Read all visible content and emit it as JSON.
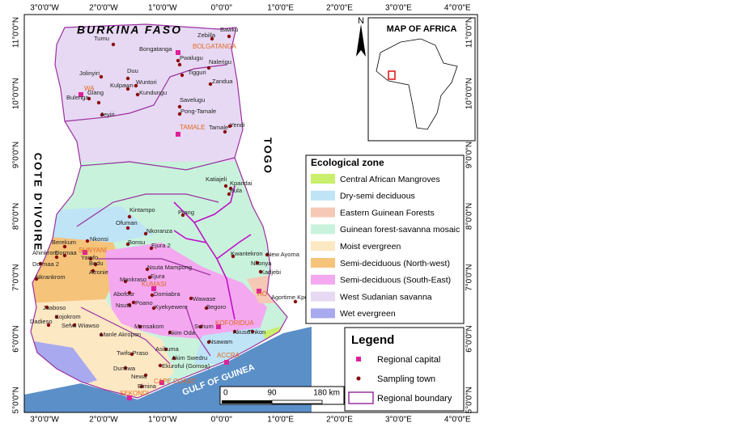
{
  "map": {
    "axes": {
      "top": [
        "3°0'0\"W",
        "2°0'0\"W",
        "1°0'0\"W",
        "0°0'0\"",
        "1°0'0\"E",
        "2°0'0\"E",
        "3°0'0\"E",
        "4°0'0\"E"
      ],
      "bottom": [
        "3°0'0\"W",
        "2°0'0\"W",
        "1°0'0\"W",
        "0°0'0\"",
        "1°0'0\"E",
        "2°0'0\"E",
        "3°0'0\"E",
        "4°0'0\"E"
      ],
      "left": [
        "11°0'0\"N",
        "10°0'0\"N",
        "9°0'0\"N",
        "8°0'0\"N",
        "7°0'0\"N",
        "6°0'0\"N",
        "5°0'0\"N"
      ],
      "right": [
        "11°0'0\"N",
        "10°0'0\"N",
        "9°0'0\"N",
        "8°0'0\"N",
        "7°0'0\"N",
        "6°0'0\"N",
        "5°0'0\"N"
      ]
    },
    "countries": {
      "north": "BURKINA FASO",
      "west": "COTE D'IVOIRE",
      "east": "TOGO",
      "sea": "GULF OF GUINEA"
    },
    "inset": {
      "title": "MAP OF AFRICA",
      "north": "N"
    },
    "scale": [
      "0",
      "90",
      "180 km"
    ],
    "ecological_zone": {
      "title": "Ecological zone",
      "items": [
        {
          "label": "Central African Mangroves",
          "color": "#c9ef6c"
        },
        {
          "label": "Dry-semi deciduous",
          "color": "#bfe4f6"
        },
        {
          "label": "Eastern Guinean Forests",
          "color": "#f6c8b6"
        },
        {
          "label": "Guinean forest-savanna mosaic",
          "color": "#c9f2dc"
        },
        {
          "label": "Moist evergreen",
          "color": "#fde8c4"
        },
        {
          "label": "Semi-deciduous (North-west)",
          "color": "#f5c37a"
        },
        {
          "label": "Semi-deciduous (South-East)",
          "color": "#f4a8f0"
        },
        {
          "label": "West Sudanian savanna",
          "color": "#e7d9f3"
        },
        {
          "label": "Wet evergreen",
          "color": "#a8a9ee"
        }
      ]
    },
    "legend": {
      "title": "Legend",
      "items": [
        "Regional capital",
        "Sampling town",
        "Regional boundary"
      ]
    },
    "capitals": [
      "BOLGATANGA",
      "WA",
      "TAMALE",
      "SUNYANI",
      "KUMASI",
      "HO",
      "KOFORIDUA",
      "ACCRA",
      "CAPE COAST",
      "SEKONDI"
    ],
    "towns": [
      "Bawku",
      "Zebilla",
      "Tumu",
      "Bongatanga",
      "Pwalugu",
      "Nalerigu",
      "Tigguri",
      "Zandua",
      "Jolinyiri",
      "Duu",
      "Wuntori",
      "Kulpawn",
      "Kundungu",
      "Bulenga",
      "Glang",
      "Jeyiri",
      "Savelugu",
      "Pong-Tamale",
      "Tamale",
      "Yendi",
      "Katiajeli",
      "Kpandai",
      "Bula",
      "Kintampo",
      "Prang",
      "Ofuman",
      "Nkoranza",
      "Bonsu",
      "Ejura 2",
      "Berekum",
      "Nkonsi",
      "Dormaa",
      "Ahinkrom",
      "Dormaa 2",
      "Yamfo",
      "Bedu",
      "Atronie",
      "Nkrankrom",
      "Nsuta Mampong",
      "Mankraso",
      "Ejura",
      "Abofour",
      "Domiabra",
      "Nsuta",
      "Poano",
      "Wawase",
      "Kyekyewere",
      "Begoro",
      "Juaboso",
      "Kojokrom",
      "Dadieso",
      "Sefwi Wiawso",
      "Mensakom",
      "Akim Oda",
      "Manle Akropon",
      "Twifo Praso",
      "Asikuma",
      "Akim Swedru",
      "Suhum",
      "Akuse",
      "Tinkon",
      "Nsawam",
      "Kwantekron",
      "New Ayoma",
      "Nkonya",
      "Kadjebi",
      "Agortime Kpetoe",
      "Ekuroful (Gomoa)",
      "Dunkwa",
      "Elmina",
      "Newa"
    ]
  }
}
